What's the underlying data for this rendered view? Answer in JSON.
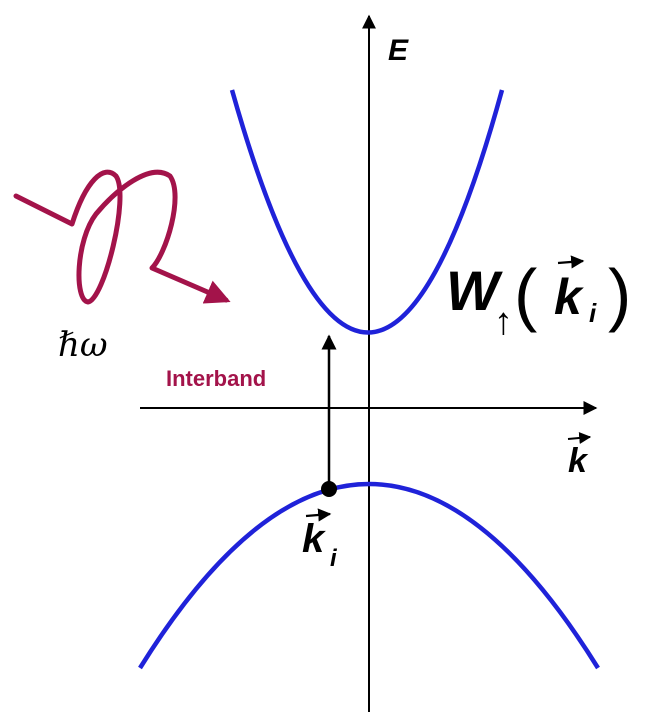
{
  "colors": {
    "band": "#1f22d9",
    "photon": "#a3134a",
    "axis": "#000000"
  },
  "labels": {
    "energy_axis": "E",
    "momentum_axis": "k",
    "photon_energy": "ℏω",
    "transition": "Interband",
    "state_k": "k",
    "state_sub": "i",
    "rate_symbol": "W",
    "rate_spin": "↑",
    "rate_arg_k": "k",
    "rate_arg_sub": "i"
  },
  "icons": {
    "photon": "wavy-arrow",
    "transition": "up-arrow",
    "initial_state": "filled-dot"
  }
}
